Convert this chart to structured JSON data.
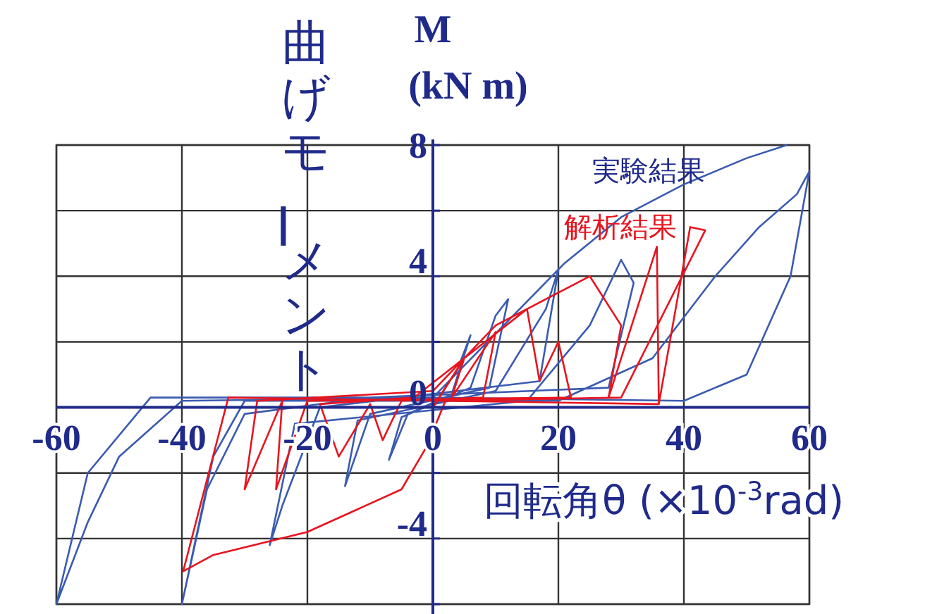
{
  "chart_data": {
    "type": "line",
    "ylabel": "曲げモーメント",
    "xlabel": "回転角θ (×10$^{-3}$rad)",
    "annotations": [
      "M",
      "(kN m)"
    ],
    "xlim": [
      -60,
      60
    ],
    "xticks": [
      -60,
      -40,
      -20,
      0,
      20,
      40,
      60
    ],
    "ylim": [
      -6,
      8
    ],
    "yticks": [
      {
        "value": -6,
        "label": null
      },
      {
        "value": -4,
        "label": "-4"
      },
      {
        "value": -2,
        "label": null
      },
      0,
      {
        "value": 2,
        "label": null
      },
      4,
      {
        "value": 6,
        "label": null
      },
      8
    ],
    "grid": true,
    "legend": "top right",
    "marker": "none",
    "line_style": "solid",
    "series": [
      {
        "name": "実験結果",
        "color": "#3a5bb0",
        "x": [
          0,
          4,
          6,
          3,
          -4,
          -7,
          -5,
          6,
          10,
          12,
          9,
          -10,
          -14,
          -12,
          10,
          18,
          20,
          17,
          -18,
          -24,
          -26,
          -22,
          15,
          25,
          30,
          32,
          28,
          -10,
          -30,
          -36,
          -40,
          -35,
          -30,
          20,
          35,
          45,
          52,
          58,
          60,
          57,
          50,
          40,
          0,
          -40,
          -50,
          -55,
          -60,
          -55,
          -45,
          0,
          21,
          30,
          40,
          50,
          56.4
        ],
        "values": [
          0,
          1.2,
          2.2,
          0.4,
          -0.2,
          -1.6,
          -0.3,
          0.6,
          2.8,
          3.3,
          0.6,
          -0.2,
          -2.4,
          -0.4,
          0.5,
          3.0,
          4.2,
          0.8,
          0,
          -3.0,
          -4.2,
          -0.5,
          0.2,
          2.5,
          4.5,
          3.8,
          0.6,
          0.3,
          -0.2,
          -2.5,
          -6.0,
          -1.5,
          0.2,
          0.2,
          1.5,
          4.0,
          5.5,
          6.5,
          7.2,
          4.0,
          1.0,
          0.2,
          0.3,
          0.2,
          -1.5,
          -3.5,
          -6.0,
          -2.0,
          0.3,
          0.3,
          4.4,
          5.8,
          6.8,
          7.6,
          8.0
        ]
      },
      {
        "name": "解析結果",
        "color": "#e8141e",
        "x": [
          0,
          5,
          3,
          10,
          8,
          -5,
          -8,
          -10,
          -15,
          -18,
          -3,
          15,
          17,
          20,
          22,
          -20,
          -25,
          -24,
          -30,
          -28,
          0,
          10,
          25,
          30,
          28,
          35.7,
          36,
          -32.6,
          -39.8,
          -35,
          -20,
          -5,
          -1,
          2,
          30,
          43.4,
          41,
          36
        ],
        "values": [
          0,
          1.5,
          0.3,
          2.3,
          0.3,
          0.2,
          -1.0,
          0.1,
          -1.5,
          0.1,
          0.3,
          3.0,
          0.8,
          2.0,
          0.3,
          0.2,
          -2.5,
          0.2,
          -2.5,
          0.2,
          0.5,
          2.5,
          4.0,
          2.5,
          0.3,
          4.9,
          0.1,
          0.3,
          -5.0,
          -4.5,
          -3.8,
          -2.5,
          -1.2,
          0.2,
          0.3,
          5.4,
          5.5,
          0.1
        ]
      }
    ]
  }
}
